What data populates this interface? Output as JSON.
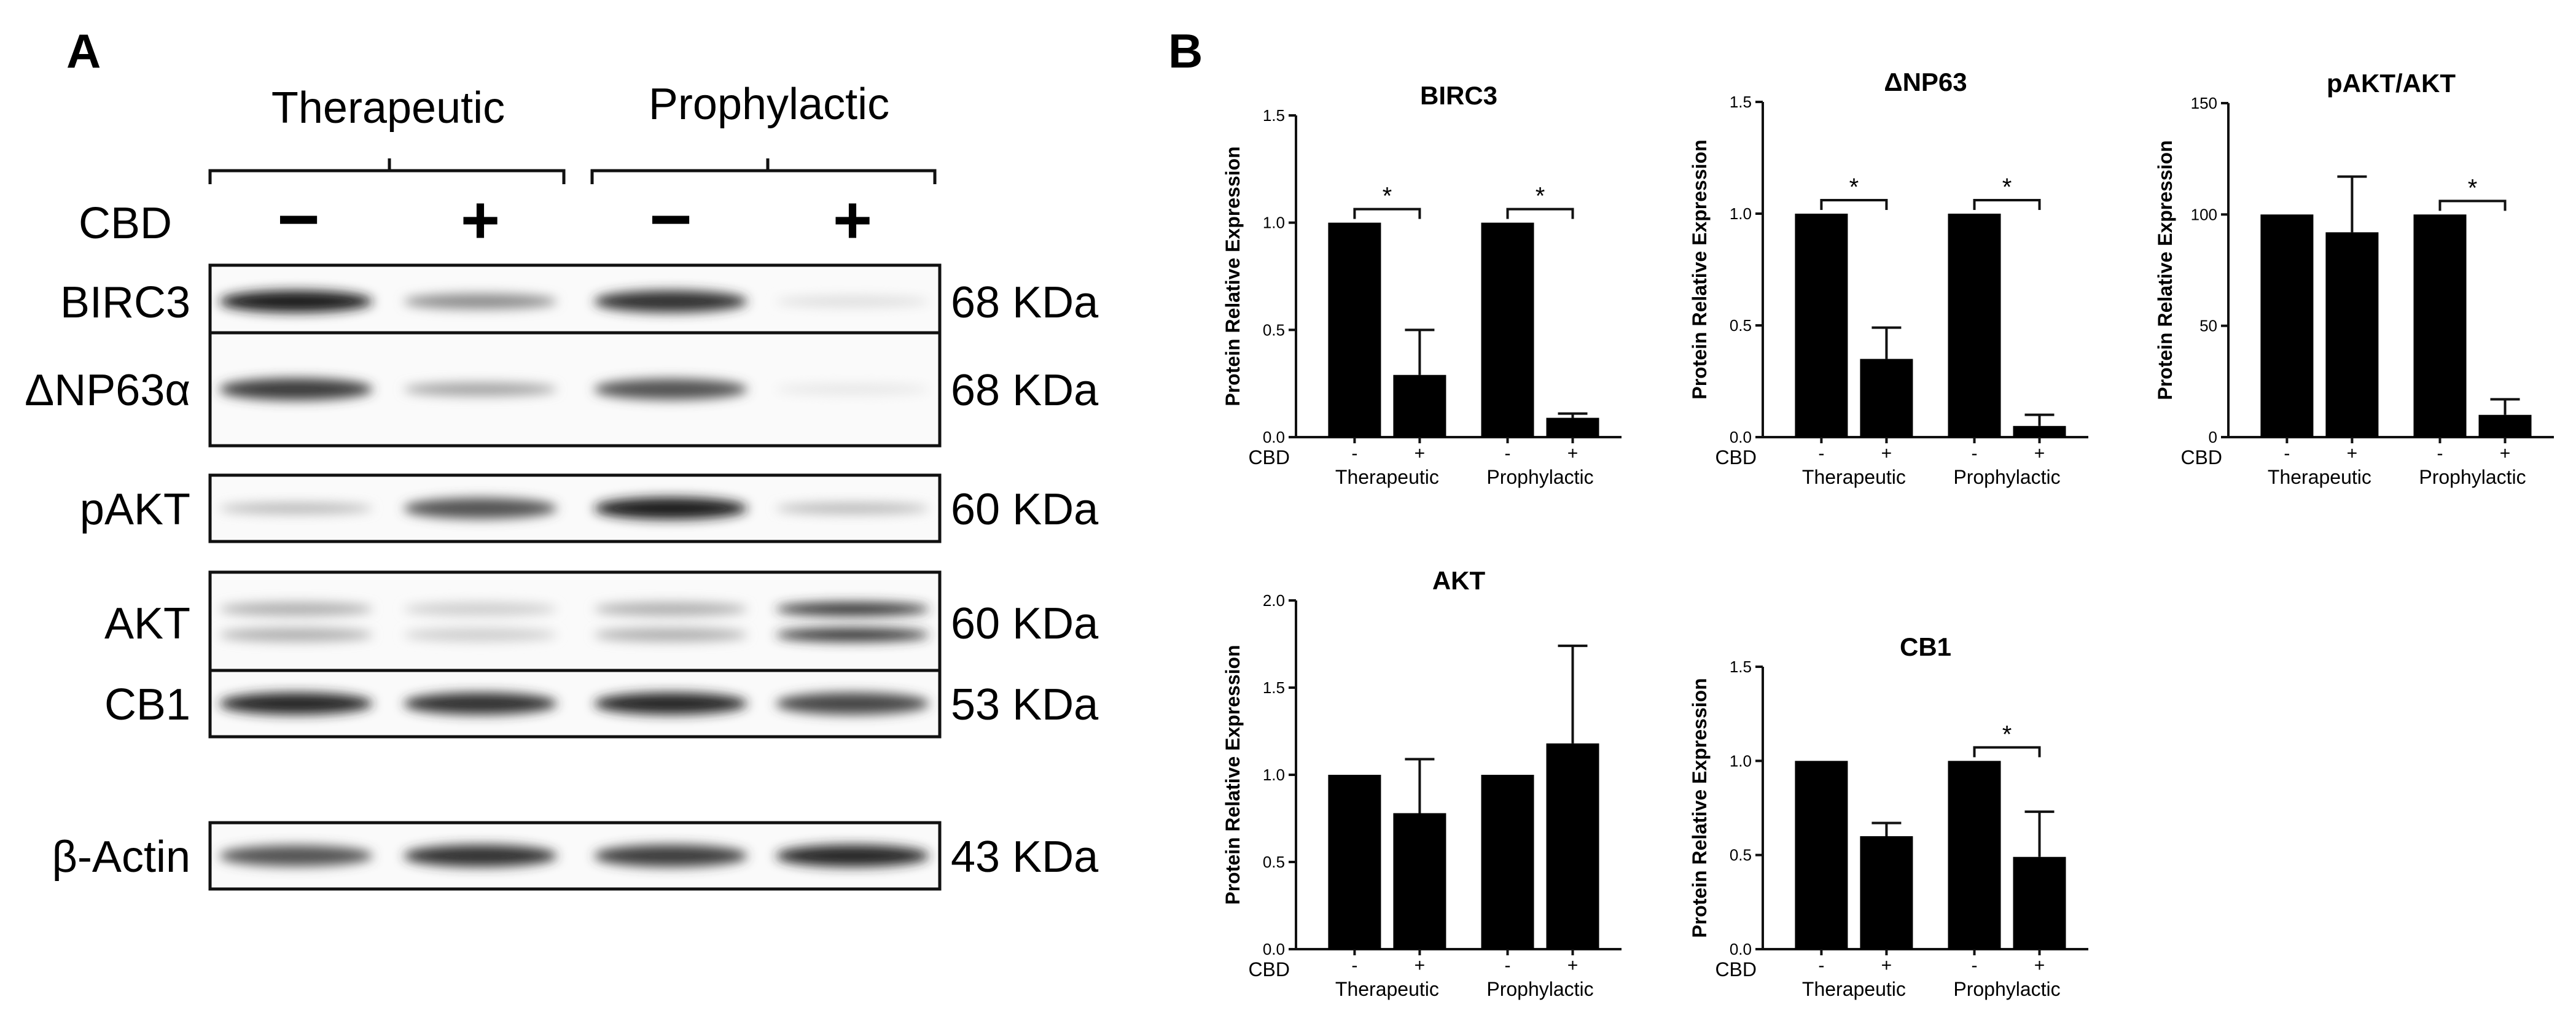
{
  "panel_a": {
    "letter": "A",
    "group_labels": [
      "Therapeutic",
      "Prophylactic"
    ],
    "treatment_label": "CBD",
    "treatment_signs": [
      "−",
      "+",
      "−",
      "+"
    ],
    "lanes": [
      "Therapeutic CBD −",
      "Therapeutic CBD +",
      "Prophylactic CBD −",
      "Prophylactic CBD +"
    ],
    "blots": [
      {
        "protein": "BIRC3",
        "size": "68 KDa",
        "band_intensity": [
          0.95,
          0.45,
          0.85,
          0.08
        ]
      },
      {
        "protein": "ΔNP63α",
        "size": "68 KDa",
        "band_intensity": [
          0.8,
          0.35,
          0.7,
          0.04
        ]
      },
      {
        "protein": "pAKT",
        "size": "60 KDa",
        "band_intensity": [
          0.25,
          0.7,
          0.95,
          0.25
        ]
      },
      {
        "protein": "AKT",
        "size": "60 KDa",
        "band_intensity": [
          0.3,
          0.15,
          0.3,
          0.85
        ]
      },
      {
        "protein": "CB1",
        "size": "53 KDa",
        "band_intensity": [
          0.9,
          0.85,
          0.9,
          0.75
        ]
      },
      {
        "protein": "β-Actin",
        "size": "43 KDa",
        "band_intensity": [
          0.7,
          0.85,
          0.8,
          0.9
        ]
      }
    ]
  },
  "panel_b": {
    "letter": "B"
  },
  "chart_data": [
    {
      "type": "bar",
      "title": "BIRC3",
      "ylabel": "Protein Relative Expression",
      "ylim": [
        0,
        1.5
      ],
      "yticks": [
        "0.0",
        "0.5",
        "1.0",
        "1.5"
      ],
      "categories": [
        "-",
        "+",
        "-",
        "+"
      ],
      "category_row_label": "CBD",
      "groups": [
        "Therapeutic",
        "Prophylactic"
      ],
      "values": [
        1.0,
        0.29,
        1.0,
        0.09
      ],
      "errors": [
        0,
        0.21,
        0,
        0.02
      ],
      "significance": [
        {
          "from": 0,
          "to": 1,
          "label": "*"
        },
        {
          "from": 2,
          "to": 3,
          "label": "*"
        }
      ]
    },
    {
      "type": "bar",
      "title": "ΔNP63",
      "ylabel": "Protein Relative Expression",
      "ylim": [
        0,
        1.5
      ],
      "yticks": [
        "0.0",
        "0.5",
        "1.0",
        "1.5"
      ],
      "categories": [
        "-",
        "+",
        "-",
        "+"
      ],
      "category_row_label": "CBD",
      "groups": [
        "Therapeutic",
        "Prophylactic"
      ],
      "values": [
        1.0,
        0.35,
        1.0,
        0.05
      ],
      "errors": [
        0,
        0.14,
        0,
        0.05
      ],
      "significance": [
        {
          "from": 0,
          "to": 1,
          "label": "*"
        },
        {
          "from": 2,
          "to": 3,
          "label": "*"
        }
      ]
    },
    {
      "type": "bar",
      "title": "pAKT/AKT",
      "ylabel": "Protein Relative Expression",
      "ylim": [
        0,
        150
      ],
      "yticks": [
        "0",
        "50",
        "100",
        "150"
      ],
      "categories": [
        "-",
        "+",
        "-",
        "+"
      ],
      "category_row_label": "CBD",
      "groups": [
        "Therapeutic",
        "Prophylactic"
      ],
      "values": [
        100,
        92,
        100,
        10
      ],
      "errors": [
        0,
        25,
        0,
        7
      ],
      "significance": [
        {
          "from": 2,
          "to": 3,
          "label": "*"
        }
      ]
    },
    {
      "type": "bar",
      "title": "AKT",
      "ylabel": "Protein Relative Expression",
      "ylim": [
        0,
        2.0
      ],
      "yticks": [
        "0.0",
        "0.5",
        "1.0",
        "1.5",
        "2.0"
      ],
      "categories": [
        "-",
        "+",
        "-",
        "+"
      ],
      "category_row_label": "CBD",
      "groups": [
        "Therapeutic",
        "Prophylactic"
      ],
      "values": [
        1.0,
        0.78,
        1.0,
        1.18
      ],
      "errors": [
        0,
        0.31,
        0,
        0.56
      ],
      "significance": []
    },
    {
      "type": "bar",
      "title": "CB1",
      "ylabel": "Protein Relative Expression",
      "ylim": [
        0,
        1.5
      ],
      "yticks": [
        "0.0",
        "0.5",
        "1.0",
        "1.5"
      ],
      "categories": [
        "-",
        "+",
        "-",
        "+"
      ],
      "category_row_label": "CBD",
      "groups": [
        "Therapeutic",
        "Prophylactic"
      ],
      "values": [
        1.0,
        0.6,
        1.0,
        0.49
      ],
      "errors": [
        0,
        0.07,
        0,
        0.24
      ],
      "significance": [
        {
          "from": 2,
          "to": 3,
          "label": "*"
        }
      ]
    }
  ]
}
